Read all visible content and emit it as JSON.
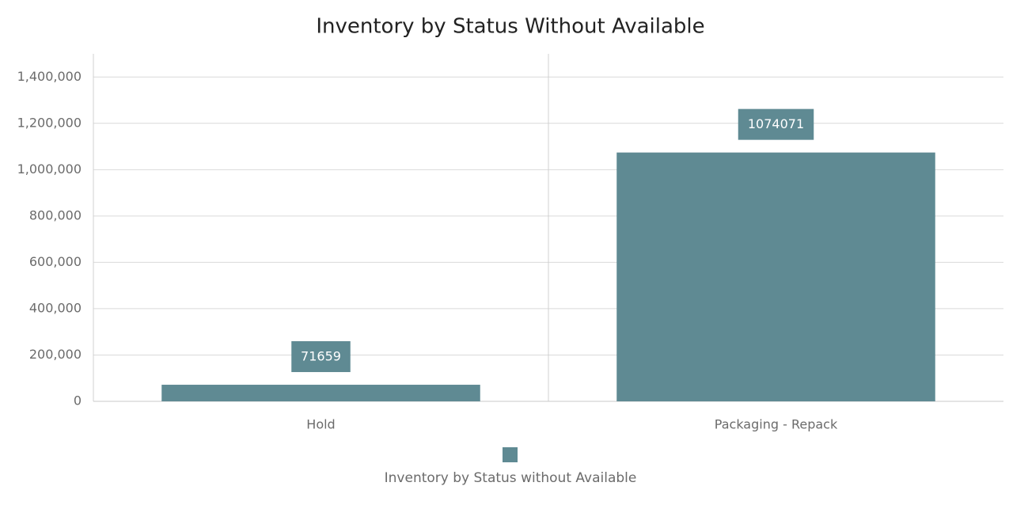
{
  "chart_data": {
    "type": "bar",
    "title": "Inventory by Status Without Available",
    "categories": [
      "Hold",
      "Packaging - Repack"
    ],
    "series": [
      {
        "name": "Inventory by Status without Available",
        "color": "#5f8a93",
        "values": [
          71659,
          1074071
        ]
      }
    ],
    "ylim": [
      0,
      1500000
    ],
    "yticks": [
      0,
      {
        "value": 200000,
        "label": "200,000"
      },
      {
        "value": 400000,
        "label": "400,000"
      },
      {
        "value": 600000,
        "label": "600,000"
      },
      {
        "value": 800000,
        "label": "800,000"
      },
      {
        "value": 1000000,
        "label": "1,000,000"
      },
      {
        "value": 1200000,
        "label": "1,200,000"
      },
      {
        "value": 1400000,
        "label": "1,400,000"
      }
    ],
    "grid": true,
    "legend": "bottom"
  }
}
